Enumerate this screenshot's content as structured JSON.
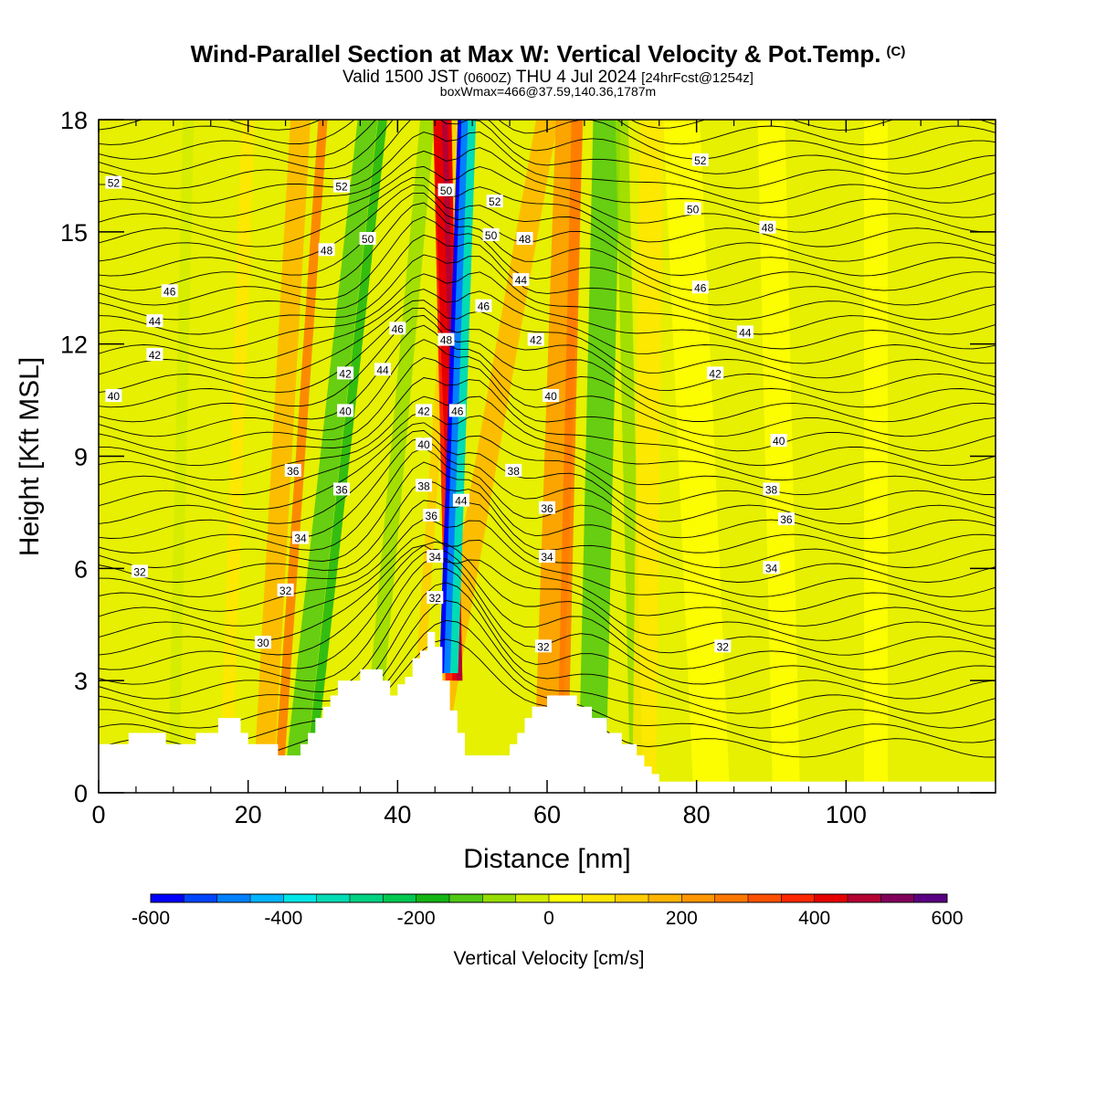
{
  "header": {
    "title": "Wind-Parallel Section at Max W: Vertical Velocity & Pot.Temp.",
    "copyright": "(C)",
    "subtitle_main": "Valid 1500 JST",
    "subtitle_utc": "(0600Z)",
    "subtitle_date": "THU 4 Jul 2024",
    "subtitle_fcst": "[24hrFcst@1254z]",
    "subsubtitle": "boxWmax=466@37.59,140.36,1787m"
  },
  "chart_data": {
    "type": "heatmap",
    "xlabel": "Distance [nm]",
    "ylabel": "Height [Kft MSL]",
    "xlim": [
      0,
      120
    ],
    "ylim": [
      0,
      18
    ],
    "x_ticks": [
      0,
      20,
      40,
      60,
      80,
      100
    ],
    "y_ticks": [
      0,
      3,
      6,
      9,
      12,
      15,
      18
    ],
    "x_tick_labels": [
      "0",
      "20",
      "40",
      "60",
      "80",
      "100"
    ],
    "y_tick_labels": [
      "0",
      "3",
      "6",
      "9",
      "12",
      "15",
      "18"
    ],
    "colorbar": {
      "title": "Vertical Velocity [cm/s]",
      "range": [
        -600,
        600
      ],
      "step": 50,
      "tick_values": [
        -600,
        -400,
        -200,
        0,
        200,
        400,
        600
      ],
      "tick_labels": [
        "-600",
        "-400",
        "-200",
        "0",
        "200",
        "400",
        "600"
      ],
      "colors": [
        "#0000ff",
        "#0044ff",
        "#0080ff",
        "#00b4ff",
        "#00e6e6",
        "#00dcb4",
        "#00d282",
        "#00c850",
        "#14b414",
        "#50c814",
        "#96dc00",
        "#d2ec00",
        "#ffff00",
        "#ffe600",
        "#ffcd00",
        "#ffb400",
        "#ff9600",
        "#ff7800",
        "#ff5000",
        "#ff2800",
        "#e60000",
        "#b40032",
        "#82005a",
        "#5a0082"
      ]
    },
    "series": [
      {
        "name": "Vertical Velocity",
        "representation": "filled field"
      },
      {
        "name": "Pot.Temp.",
        "representation": "contour lines"
      }
    ],
    "terrain_profile": {
      "x": [
        0,
        4,
        4,
        8,
        8,
        9,
        9,
        11,
        11,
        13,
        13,
        16,
        16,
        19,
        19,
        20,
        20,
        22,
        22,
        24,
        24,
        27,
        27,
        28,
        28,
        29,
        29,
        30,
        30,
        31,
        31,
        32,
        32,
        35,
        35,
        38,
        38,
        39,
        39,
        40,
        40,
        41,
        41,
        42,
        42,
        43,
        43,
        44,
        44,
        45,
        45,
        46,
        46,
        47,
        47,
        48,
        48,
        49,
        49,
        50,
        50,
        51,
        51,
        53,
        53,
        54,
        54,
        55,
        55,
        56,
        56,
        57,
        57,
        58,
        58,
        60,
        60,
        63,
        63,
        64,
        64,
        66,
        66,
        68,
        68,
        70,
        70,
        72,
        72,
        73,
        73,
        74,
        74,
        75,
        75,
        76,
        76,
        77,
        77,
        120
      ],
      "y": [
        1.3,
        1.3,
        1.6,
        1.6,
        1.6,
        1.6,
        1.3,
        1.3,
        1.3,
        1.3,
        1.6,
        1.6,
        2.0,
        2.0,
        1.6,
        1.6,
        1.3,
        1.3,
        1.3,
        1.3,
        1.0,
        1.0,
        1.3,
        1.3,
        1.6,
        1.6,
        2.0,
        2.0,
        2.3,
        2.3,
        2.6,
        2.6,
        3.0,
        3.0,
        3.3,
        3.3,
        3.0,
        3.0,
        2.6,
        2.6,
        2.9,
        2.9,
        3.1,
        3.1,
        3.6,
        3.6,
        3.8,
        3.8,
        4.3,
        4.3,
        3.9,
        3.9,
        3.0,
        3.0,
        2.2,
        2.2,
        1.6,
        1.6,
        1.0,
        1.0,
        1.0,
        1.0,
        1.0,
        1.0,
        1.0,
        1.0,
        1.0,
        1.0,
        1.3,
        1.3,
        1.6,
        1.6,
        2.0,
        2.0,
        2.3,
        2.3,
        2.6,
        2.6,
        2.6,
        2.6,
        2.3,
        2.3,
        2.0,
        2.0,
        1.6,
        1.6,
        1.3,
        1.3,
        1.0,
        1.0,
        0.7,
        0.7,
        0.5,
        0.5,
        0.3,
        0.3,
        0.3,
        0.3,
        0.3,
        0.3
      ]
    },
    "contour_labels": [
      {
        "text": "52",
        "x": 2,
        "y": 16.3
      },
      {
        "text": "52",
        "x": 32.5,
        "y": 16.2
      },
      {
        "text": "52",
        "x": 53,
        "y": 15.8
      },
      {
        "text": "52",
        "x": 80.5,
        "y": 16.9
      },
      {
        "text": "50",
        "x": 46.5,
        "y": 16.1
      },
      {
        "text": "50",
        "x": 36,
        "y": 14.8
      },
      {
        "text": "50",
        "x": 52.5,
        "y": 14.9
      },
      {
        "text": "50",
        "x": 79.5,
        "y": 15.6
      },
      {
        "text": "48",
        "x": 30.5,
        "y": 14.5
      },
      {
        "text": "48",
        "x": 57,
        "y": 14.8
      },
      {
        "text": "48",
        "x": 89.5,
        "y": 15.1
      },
      {
        "text": "48",
        "x": 46.5,
        "y": 12.1
      },
      {
        "text": "46",
        "x": 9.5,
        "y": 13.4
      },
      {
        "text": "46",
        "x": 51.5,
        "y": 13.0
      },
      {
        "text": "46",
        "x": 80.5,
        "y": 13.5
      },
      {
        "text": "46",
        "x": 40,
        "y": 12.4
      },
      {
        "text": "46",
        "x": 48,
        "y": 10.2
      },
      {
        "text": "44",
        "x": 7.5,
        "y": 12.6
      },
      {
        "text": "44",
        "x": 56.5,
        "y": 13.7
      },
      {
        "text": "44",
        "x": 86.5,
        "y": 12.3
      },
      {
        "text": "44",
        "x": 38,
        "y": 11.3
      },
      {
        "text": "44",
        "x": 48.5,
        "y": 7.8
      },
      {
        "text": "42",
        "x": 7.5,
        "y": 11.7
      },
      {
        "text": "42",
        "x": 58.5,
        "y": 12.1
      },
      {
        "text": "42",
        "x": 82.5,
        "y": 11.2
      },
      {
        "text": "42",
        "x": 33,
        "y": 11.2
      },
      {
        "text": "42",
        "x": 43.5,
        "y": 10.2
      },
      {
        "text": "40",
        "x": 2,
        "y": 10.6
      },
      {
        "text": "40",
        "x": 33,
        "y": 10.2
      },
      {
        "text": "40",
        "x": 60.5,
        "y": 10.6
      },
      {
        "text": "40",
        "x": 91,
        "y": 9.4
      },
      {
        "text": "40",
        "x": 43.5,
        "y": 9.3
      },
      {
        "text": "38",
        "x": 43.5,
        "y": 8.2
      },
      {
        "text": "38",
        "x": 55.5,
        "y": 8.6
      },
      {
        "text": "38",
        "x": 90,
        "y": 8.1
      },
      {
        "text": "36",
        "x": 26,
        "y": 8.6
      },
      {
        "text": "36",
        "x": 32.5,
        "y": 8.1
      },
      {
        "text": "36",
        "x": 44.5,
        "y": 7.4
      },
      {
        "text": "36",
        "x": 60,
        "y": 7.6
      },
      {
        "text": "36",
        "x": 92,
        "y": 7.3
      },
      {
        "text": "34",
        "x": 27,
        "y": 6.8
      },
      {
        "text": "34",
        "x": 45,
        "y": 6.3
      },
      {
        "text": "34",
        "x": 60,
        "y": 6.3
      },
      {
        "text": "34",
        "x": 90,
        "y": 6.0
      },
      {
        "text": "32",
        "x": 5.5,
        "y": 5.9
      },
      {
        "text": "32",
        "x": 25,
        "y": 5.4
      },
      {
        "text": "32",
        "x": 45,
        "y": 5.2
      },
      {
        "text": "32",
        "x": 59.5,
        "y": 3.9
      },
      {
        "text": "32",
        "x": 83.5,
        "y": 3.9
      },
      {
        "text": "30",
        "x": 22,
        "y": 4.0
      }
    ]
  }
}
